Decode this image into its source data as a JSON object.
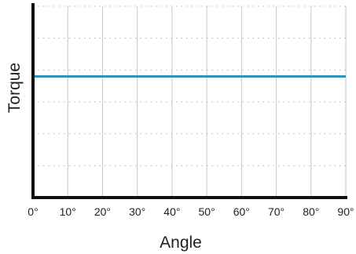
{
  "chart_data": {
    "type": "line",
    "xlabel": "Angle",
    "ylabel": "Torque",
    "xlim": [
      0,
      90
    ],
    "ylim": [
      0,
      6
    ],
    "x_ticks": [
      {
        "value": 0,
        "label": "0°"
      },
      {
        "value": 10,
        "label": "10°"
      },
      {
        "value": 20,
        "label": "20°"
      },
      {
        "value": 30,
        "label": "30°"
      },
      {
        "value": 40,
        "label": "40°"
      },
      {
        "value": 50,
        "label": "50°"
      },
      {
        "value": 60,
        "label": "60°"
      },
      {
        "value": 70,
        "label": "70°"
      },
      {
        "value": 80,
        "label": "80°"
      },
      {
        "value": 90,
        "label": "90°"
      }
    ],
    "y_tick_labels_shown": false,
    "grid": {
      "vertical": "solid",
      "horizontal": "dotted"
    },
    "series": [
      {
        "x": [
          0,
          90
        ],
        "y": [
          3.8,
          3.8
        ],
        "color": "#2a95b8"
      }
    ],
    "colors": {
      "axis": "#111111",
      "grid": "#c8c8c8",
      "line": "#2a95b8"
    }
  }
}
